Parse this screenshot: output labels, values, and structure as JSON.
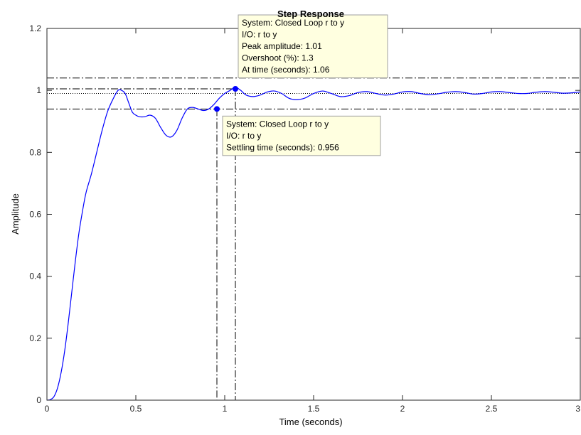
{
  "chart_data": {
    "type": "line",
    "title": "Step Response",
    "xlabel": "Time (seconds)",
    "ylabel": "Amplitude",
    "xlim": [
      0,
      3
    ],
    "ylim": [
      0,
      1.2
    ],
    "xticks": [
      "0",
      "0.5",
      "1",
      "1.5",
      "2",
      "2.5",
      "3"
    ],
    "yticks": [
      "0",
      "0.2",
      "0.4",
      "0.6",
      "0.8",
      "1",
      "1.2"
    ],
    "grid": false,
    "line_color": "#0000ff",
    "series": [
      {
        "x": [
          0,
          0.02,
          0.04,
          0.06,
          0.08,
          0.1,
          0.12,
          0.14,
          0.16,
          0.18,
          0.2,
          0.22,
          0.25,
          0.28,
          0.31,
          0.34,
          0.37,
          0.4,
          0.42,
          0.44,
          0.46,
          0.48,
          0.5,
          0.52,
          0.55,
          0.58,
          0.61,
          0.64,
          0.67,
          0.7,
          0.73,
          0.76,
          0.79,
          0.82,
          0.85,
          0.88,
          0.91,
          0.94,
          0.97,
          1.0,
          1.03,
          1.06,
          1.09,
          1.12,
          1.16,
          1.2,
          1.24,
          1.28,
          1.32,
          1.36,
          1.4,
          1.45,
          1.5,
          1.55,
          1.6,
          1.65,
          1.7,
          1.75,
          1.8,
          1.85,
          1.9,
          1.95,
          2.0,
          2.05,
          2.1,
          2.15,
          2.2,
          2.25,
          2.3,
          2.35,
          2.4,
          2.45,
          2.5,
          2.55,
          2.6,
          2.65,
          2.7,
          2.75,
          2.8,
          2.85,
          2.9,
          2.95,
          3.0
        ],
        "y": [
          0,
          0.002,
          0.012,
          0.04,
          0.09,
          0.16,
          0.25,
          0.35,
          0.45,
          0.54,
          0.61,
          0.67,
          0.73,
          0.8,
          0.87,
          0.93,
          0.97,
          1.0,
          1.0,
          0.99,
          0.96,
          0.93,
          0.92,
          0.915,
          0.915,
          0.92,
          0.91,
          0.88,
          0.855,
          0.85,
          0.87,
          0.91,
          0.94,
          0.945,
          0.94,
          0.935,
          0.94,
          0.955,
          0.975,
          0.99,
          1.0,
          1.01,
          1.0,
          0.985,
          0.98,
          0.985,
          0.995,
          0.998,
          0.99,
          0.975,
          0.97,
          0.975,
          0.99,
          0.998,
          0.99,
          0.98,
          0.983,
          0.993,
          0.996,
          0.99,
          0.985,
          0.988,
          0.995,
          0.996,
          0.99,
          0.986,
          0.989,
          0.994,
          0.996,
          0.993,
          0.988,
          0.99,
          0.995,
          0.996,
          0.993,
          0.99,
          0.99,
          0.994,
          0.996,
          0.994,
          0.991,
          0.992,
          0.995
        ]
      }
    ],
    "steady_state_line": 0.99,
    "settling_band": [
      0.94,
      1.04
    ],
    "peak_marker_hline": 1.005,
    "settling_time_vline": 0.956,
    "peak_time_vline": 1.06,
    "datatips": [
      {
        "x": 1.06,
        "y": 1.005,
        "lines": [
          "System: Closed Loop r to y",
          "I/O: r to y",
          "Peak amplitude: 1.01",
          "Overshoot (%): 1.3",
          "At time (seconds): 1.06"
        ]
      },
      {
        "x": 0.956,
        "y": 0.94,
        "lines": [
          "System: Closed Loop r to y",
          "I/O: r to y",
          "Settling time (seconds): 0.956"
        ]
      }
    ]
  }
}
